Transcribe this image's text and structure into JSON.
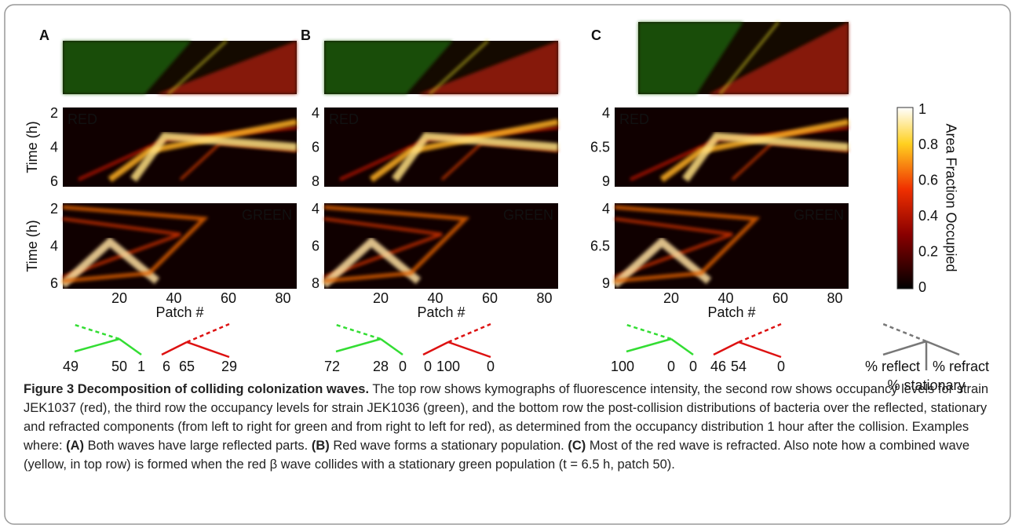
{
  "panels": [
    {
      "letter": "A",
      "red_label": "RED",
      "green_label": "GREEN",
      "y_label": "Time (h)",
      "red_yticks": [
        "2",
        "4",
        "6"
      ],
      "green_yticks": [
        "2",
        "4",
        "6"
      ],
      "xticks": [
        "20",
        "40",
        "60",
        "80"
      ],
      "x_label": "Patch #",
      "green_split": [
        "49",
        "50",
        "1"
      ],
      "red_split": [
        "6",
        "65",
        "29"
      ]
    },
    {
      "letter": "B",
      "red_label": "RED",
      "green_label": "GREEN",
      "red_yticks": [
        "4",
        "6",
        "8"
      ],
      "green_yticks": [
        "4",
        "6",
        "8"
      ],
      "xticks": [
        "20",
        "40",
        "60",
        "80"
      ],
      "x_label": "Patch #",
      "green_split": [
        "72",
        "28",
        "0"
      ],
      "red_split": [
        "0",
        "100",
        "0"
      ]
    },
    {
      "letter": "C",
      "red_label": "RED",
      "green_label": "GREEN",
      "red_yticks": [
        "4",
        "6.5",
        "9"
      ],
      "green_yticks": [
        "4",
        "6.5",
        "9"
      ],
      "xticks": [
        "20",
        "40",
        "60",
        "80"
      ],
      "x_label": "Patch #",
      "green_split": [
        "100",
        "0",
        "0"
      ],
      "red_split": [
        "46",
        "54",
        "0"
      ]
    }
  ],
  "colorbar": {
    "label": "Area Fraction Occupied",
    "ticks": [
      "1",
      "0.8",
      "0.6",
      "0.4",
      "0.2",
      "0"
    ]
  },
  "legend": {
    "reflect": "% reflect",
    "refract": "% refract",
    "stationary": "% stationary"
  },
  "caption": {
    "title": "Figure 3 Decomposition of colliding colonization waves.",
    "text": " The top row shows kymographs of fluorescence intensity, the second row shows occupancy levels for strain JEK1037 (red), the third row the occupancy levels for strain JEK1036 (green), and the bottom row the post-collision distributions of bacteria over the reflected, stationary and refracted components (from left to right for green and from right to left for red), as determined from the occupancy distribution 1 hour after the collision. Examples where: ",
    "a_label": "(A)",
    "a_text": " Both waves have large reflected parts. ",
    "b_label": "(B)",
    "b_text": " Red wave forms a stationary population. ",
    "c_label": "(C)",
    "c_text": " Most of the red wave is refracted. Also note how a combined wave (yellow, in top row) is formed when the red β wave collides with a stationary green population (t = 6.5 h, patch 50)."
  }
}
